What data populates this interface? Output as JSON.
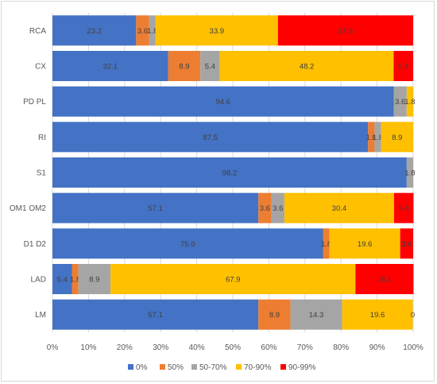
{
  "chart_data": {
    "type": "bar",
    "orientation": "horizontal",
    "stacked": "percent",
    "categories": [
      "RCA",
      "CX",
      "PD PL",
      "RI",
      "S1",
      "OM1 OM2",
      "D1 D2",
      "LAD",
      "LM"
    ],
    "series": [
      {
        "name": "0%",
        "color": "#4472c4",
        "values": [
          23.2,
          32.1,
          94.6,
          87.5,
          98.2,
          57.1,
          75.0,
          5.4,
          57.1
        ]
      },
      {
        "name": "50%",
        "color": "#ed7d31",
        "values": [
          3.6,
          8.9,
          0,
          1.8,
          0,
          3.6,
          1.8,
          1.8,
          8.9
        ]
      },
      {
        "name": "50-70%",
        "color": "#a5a5a5",
        "values": [
          1.8,
          5.4,
          3.6,
          1.8,
          1.8,
          3.6,
          0,
          8.9,
          14.3
        ]
      },
      {
        "name": "70-90%",
        "color": "#ffc000",
        "values": [
          33.9,
          48.2,
          1.8,
          8.9,
          0,
          30.4,
          19.6,
          67.9,
          19.6
        ]
      },
      {
        "name": "90-99%",
        "color": "#ff0000",
        "values": [
          37.5,
          5.4,
          0,
          0,
          0,
          5.4,
          3.6,
          16.1,
          0
        ]
      }
    ],
    "labels": [
      [
        "23.2",
        "3.6",
        "1.8",
        "33.9",
        "37.5"
      ],
      [
        "32.1",
        "8.9",
        "5.4",
        "48.2",
        "5.4"
      ],
      [
        "94.6",
        "",
        "3.6",
        "1.8",
        ""
      ],
      [
        "87.5",
        "1.8",
        "1.8",
        "8.9",
        ""
      ],
      [
        "98.2",
        "",
        "1.8",
        "",
        ""
      ],
      [
        "57.1",
        "3.6",
        "3.6",
        "30.4",
        "5.4"
      ],
      [
        "75.0",
        "1.8",
        "",
        "19.6",
        "3.6"
      ],
      [
        "5.4",
        "1.8",
        "8.9",
        "67.9",
        "16.1"
      ],
      [
        "57.1",
        "8.9",
        "14.3",
        "19.6",
        "0"
      ]
    ],
    "x_ticks": [
      "0%",
      "10%",
      "20%",
      "30%",
      "40%",
      "50%",
      "60%",
      "70%",
      "80%",
      "90%",
      "100%"
    ],
    "xlim": [
      0,
      100
    ],
    "grid": true,
    "legend_position": "bottom"
  }
}
